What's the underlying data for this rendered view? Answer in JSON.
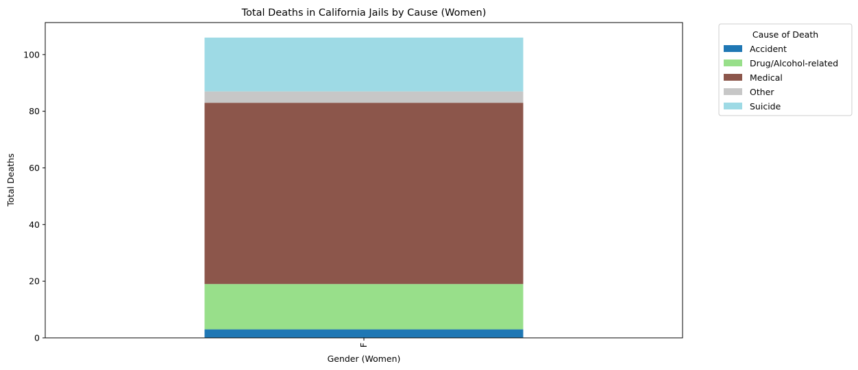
{
  "chart_data": {
    "type": "bar",
    "stacked": true,
    "title": "Total Deaths in California Jails by Cause (Women)",
    "xlabel": "Gender (Women)",
    "ylabel": "Total Deaths",
    "categories": [
      "F"
    ],
    "ylim": [
      0,
      111.3
    ],
    "yticks": [
      0,
      20,
      40,
      60,
      80,
      100
    ],
    "grid": false,
    "legend": {
      "title": "Cause of Death",
      "placement": "outside-top-right"
    },
    "series": [
      {
        "name": "Accident",
        "values": [
          3
        ],
        "color": "#1f77b4"
      },
      {
        "name": "Drug/Alcohol-related",
        "values": [
          16
        ],
        "color": "#98df8a"
      },
      {
        "name": "Medical",
        "values": [
          64
        ],
        "color": "#8c564b"
      },
      {
        "name": "Other",
        "values": [
          4
        ],
        "color": "#c7c7c7"
      },
      {
        "name": "Suicide",
        "values": [
          19
        ],
        "color": "#9edae5"
      }
    ]
  }
}
